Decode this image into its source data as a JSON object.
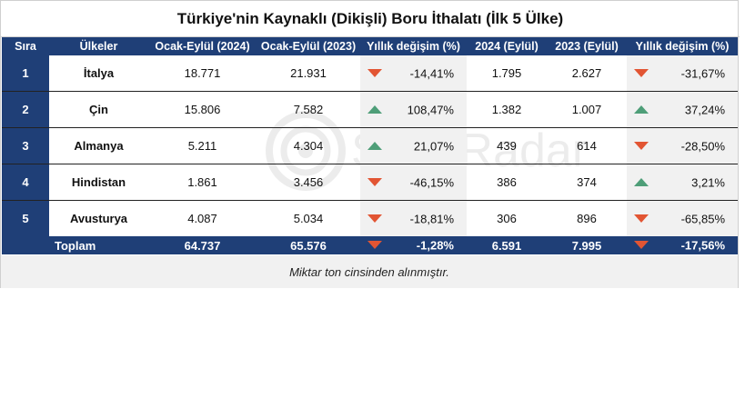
{
  "title": "Türkiye'nin Kaynaklı (Dikişli) Boru İthalatı (İlk 5 Ülke)",
  "columns": [
    "Sıra",
    "Ülkeler",
    "Ocak-Eylül (2024)",
    "Ocak-Eylül (2023)",
    "Yıllık değişim (%)",
    "2024 (Eylül)",
    "2023 (Eylül)",
    "Yıllık değişim (%)"
  ],
  "rows": [
    {
      "rank": "1",
      "country": "İtalya",
      "ytd2024": "18.771",
      "ytd2023": "21.931",
      "ytd_change": "-14,41%",
      "ytd_dir": "down",
      "sep2024": "1.795",
      "sep2023": "2.627",
      "sep_change": "-31,67%",
      "sep_dir": "down"
    },
    {
      "rank": "2",
      "country": "Çin",
      "ytd2024": "15.806",
      "ytd2023": "7.582",
      "ytd_change": "108,47%",
      "ytd_dir": "up",
      "sep2024": "1.382",
      "sep2023": "1.007",
      "sep_change": "37,24%",
      "sep_dir": "up"
    },
    {
      "rank": "3",
      "country": "Almanya",
      "ytd2024": "5.211",
      "ytd2023": "4.304",
      "ytd_change": "21,07%",
      "ytd_dir": "up",
      "sep2024": "439",
      "sep2023": "614",
      "sep_change": "-28,50%",
      "sep_dir": "down"
    },
    {
      "rank": "4",
      "country": "Hindistan",
      "ytd2024": "1.861",
      "ytd2023": "3.456",
      "ytd_change": "-46,15%",
      "ytd_dir": "down",
      "sep2024": "386",
      "sep2023": "374",
      "sep_change": "3,21%",
      "sep_dir": "up"
    },
    {
      "rank": "5",
      "country": "Avusturya",
      "ytd2024": "4.087",
      "ytd2023": "5.034",
      "ytd_change": "-18,81%",
      "ytd_dir": "down",
      "sep2024": "306",
      "sep2023": "896",
      "sep_change": "-65,85%",
      "sep_dir": "down"
    }
  ],
  "total": {
    "label": "Toplam",
    "ytd2024": "64.737",
    "ytd2023": "65.576",
    "ytd_change": "-1,28%",
    "ytd_dir": "down",
    "sep2024": "6.591",
    "sep2023": "7.995",
    "sep_change": "-17,56%",
    "sep_dir": "down"
  },
  "note": "Miktar ton cinsinden alınmıştır.",
  "watermark": "SteelRadar",
  "colors": {
    "header": "#1f3f77",
    "down": "#e25533",
    "up": "#4e9e78",
    "shade": "#f1f1f1"
  },
  "chart_data": {
    "type": "table",
    "title": "Türkiye'nin Kaynaklı (Dikişli) Boru İthalatı (İlk 5 Ülke)",
    "columns": [
      "Sıra",
      "Ülkeler",
      "Ocak-Eylül (2024)",
      "Ocak-Eylül (2023)",
      "Yıllık değişim (%)",
      "2024 (Eylül)",
      "2023 (Eylül)",
      "Yıllık değişim (%)"
    ],
    "rows": [
      [
        1,
        "İtalya",
        18771,
        21931,
        -14.41,
        1795,
        2627,
        -31.67
      ],
      [
        2,
        "Çin",
        15806,
        7582,
        108.47,
        1382,
        1007,
        37.24
      ],
      [
        3,
        "Almanya",
        5211,
        4304,
        21.07,
        439,
        614,
        -28.5
      ],
      [
        4,
        "Hindistan",
        1861,
        3456,
        -46.15,
        386,
        374,
        3.21
      ],
      [
        5,
        "Avusturya",
        4087,
        5034,
        -18.81,
        306,
        896,
        -65.85
      ]
    ],
    "total": [
      "Toplam",
      64737,
      65576,
      -1.28,
      6591,
      7995,
      -17.56
    ]
  }
}
